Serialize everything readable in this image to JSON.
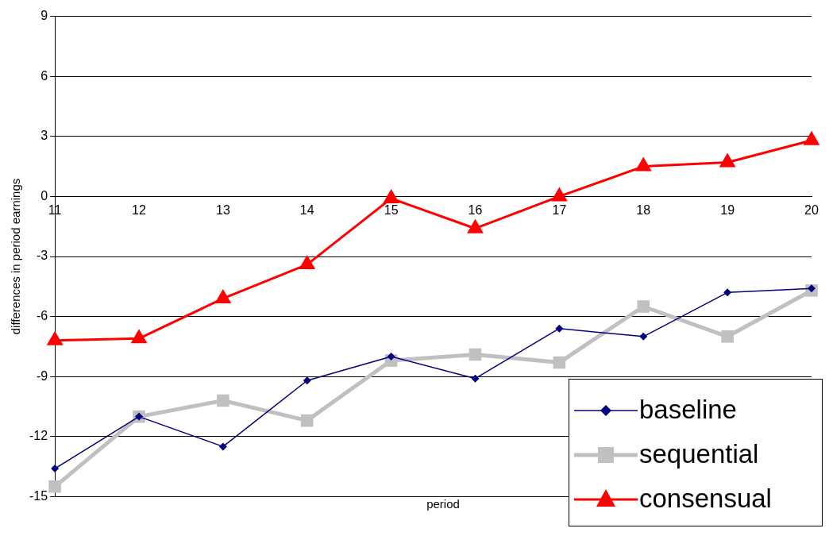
{
  "chart_data": {
    "type": "line",
    "xlabel": "period",
    "ylabel": "differences in period earnings",
    "categories": [
      "11",
      "12",
      "13",
      "14",
      "15",
      "16",
      "17",
      "18",
      "19",
      "20"
    ],
    "series": [
      {
        "name": "baseline",
        "color": "#000080",
        "marker": "diamond",
        "values": [
          -13.6,
          -11.0,
          -12.5,
          -9.2,
          -8.0,
          -9.1,
          -6.6,
          -7.0,
          -4.8,
          -4.6
        ]
      },
      {
        "name": "sequential",
        "color": "#c0c0c0",
        "marker": "square",
        "values": [
          -14.5,
          -11.0,
          -10.2,
          -11.2,
          -8.2,
          -7.9,
          -8.3,
          -5.5,
          -7.0,
          -4.7
        ]
      },
      {
        "name": "consensual",
        "color": "#ff0000",
        "marker": "triangle",
        "values": [
          -7.2,
          -7.1,
          -5.1,
          -3.4,
          -0.1,
          -1.6,
          0.0,
          1.5,
          1.7,
          2.8
        ]
      }
    ],
    "ylim": [
      -15,
      9
    ],
    "yticks": [
      -15,
      -12,
      -9,
      -6,
      -3,
      0,
      3,
      6,
      9
    ],
    "grid": "y",
    "legend": "bottom right"
  }
}
